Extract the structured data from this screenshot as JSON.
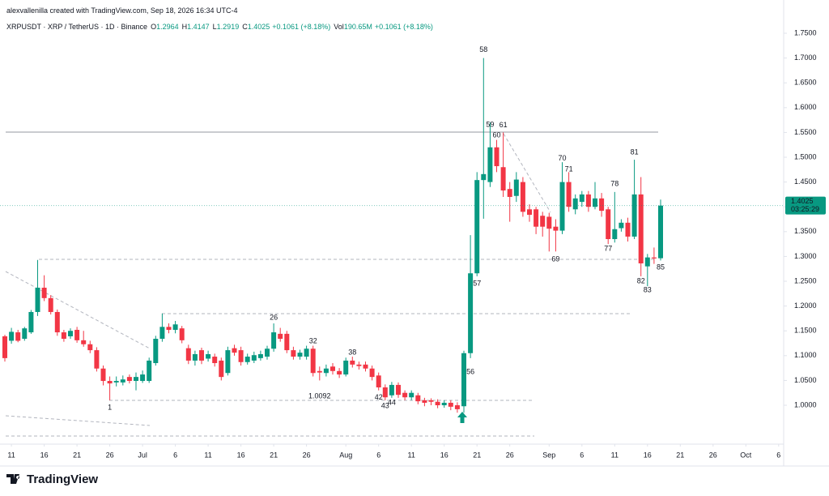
{
  "header": {
    "credit": "alexvallenilla created with TradingView.com, Sep 18, 2026 16:34 UTC-4",
    "symbol": "XRPUSDT · XRP / TetherUS · 1D · Binance",
    "ohlc": [
      {
        "label": "O",
        "value": "1.2964"
      },
      {
        "label": "H",
        "value": "1.4147"
      },
      {
        "label": "L",
        "value": "1.2919"
      },
      {
        "label": "C",
        "value": "1.4025"
      }
    ],
    "change": "+0.1061 (+8.18%)",
    "volume_label": "Vol",
    "volume": "190.65M",
    "volume_change": "+0.1061 (+8.18%)"
  },
  "chart_data": {
    "type": "candlestick",
    "x": [
      "2026-06-10",
      "2026-06-11",
      "2026-06-12",
      "2026-06-13",
      "2026-06-14",
      "2026-06-15",
      "2026-06-16",
      "2026-06-17",
      "2026-06-18",
      "2026-06-19",
      "2026-06-20",
      "2026-06-21",
      "2026-06-22",
      "2026-06-23",
      "2026-06-24",
      "2026-06-25",
      "2026-06-26",
      "2026-06-27",
      "2026-06-28",
      "2026-06-29",
      "2026-06-30",
      "2026-07-01",
      "2026-07-02",
      "2026-07-03",
      "2026-07-04",
      "2026-07-05",
      "2026-07-06",
      "2026-07-07",
      "2026-07-08",
      "2026-07-09",
      "2026-07-10",
      "2026-07-11",
      "2026-07-12",
      "2026-07-13",
      "2026-07-14",
      "2026-07-15",
      "2026-07-16",
      "2026-07-17",
      "2026-07-18",
      "2026-07-19",
      "2026-07-20",
      "2026-07-21",
      "2026-07-22",
      "2026-07-23",
      "2026-07-24",
      "2026-07-25",
      "2026-07-26",
      "2026-07-27",
      "2026-07-28",
      "2026-07-29",
      "2026-07-30",
      "2026-07-31",
      "2026-08-01",
      "2026-08-02",
      "2026-08-03",
      "2026-08-04",
      "2026-08-05",
      "2026-08-06",
      "2026-08-07",
      "2026-08-08",
      "2026-08-09",
      "2026-08-10",
      "2026-08-11",
      "2026-08-12",
      "2026-08-13",
      "2026-08-14",
      "2026-08-15",
      "2026-08-16",
      "2026-08-17",
      "2026-08-18",
      "2026-08-19",
      "2026-08-20",
      "2026-08-21",
      "2026-08-22",
      "2026-08-23",
      "2026-08-24",
      "2026-08-25",
      "2026-08-26",
      "2026-08-27",
      "2026-08-28",
      "2026-08-29",
      "2026-08-30",
      "2026-08-31",
      "2026-09-01",
      "2026-09-02",
      "2026-09-03",
      "2026-09-04",
      "2026-09-05",
      "2026-09-06",
      "2026-09-07",
      "2026-09-08",
      "2026-09-09",
      "2026-09-10",
      "2026-09-11",
      "2026-09-12",
      "2026-09-13",
      "2026-09-14",
      "2026-09-15",
      "2026-09-16",
      "2026-09-17",
      "2026-09-18"
    ],
    "open": [
      1.139,
      1.13,
      1.147,
      1.134,
      1.147,
      1.188,
      1.237,
      1.216,
      1.188,
      1.147,
      1.139,
      1.152,
      1.131,
      1.123,
      1.111,
      1.074,
      1.049,
      1.046,
      1.046,
      1.057,
      1.049,
      1.049,
      1.049,
      1.085,
      1.134,
      1.158,
      1.152,
      1.155,
      1.115,
      1.09,
      1.111,
      1.094,
      1.098,
      1.09,
      1.065,
      1.115,
      1.111,
      1.087,
      1.09,
      1.095,
      1.098,
      1.114,
      1.144,
      1.144,
      1.111,
      1.098,
      1.098,
      1.114,
      1.069,
      1.065,
      1.078,
      1.069,
      1.062,
      1.09,
      1.082,
      1.082,
      1.074,
      1.06,
      1.036,
      1.02,
      1.041,
      1.025,
      1.016,
      1.02,
      1.01,
      1.01,
      1.007,
      1.0,
      1.005,
      1.0,
      0.998,
      1.105,
      1.266,
      1.454,
      1.45,
      1.52,
      1.48,
      1.436,
      1.422,
      1.45,
      1.395,
      1.395,
      1.382,
      1.38,
      1.36,
      1.352,
      1.45,
      1.395,
      1.41,
      1.425,
      1.4,
      1.417,
      1.395,
      1.335,
      1.357,
      1.368,
      1.34,
      1.425,
      1.28,
      1.298,
      1.2964
    ],
    "high": [
      1.142,
      1.156,
      1.152,
      1.158,
      1.192,
      1.293,
      1.262,
      1.222,
      1.193,
      1.152,
      1.155,
      1.158,
      1.15,
      1.13,
      1.117,
      1.08,
      1.058,
      1.058,
      1.06,
      1.062,
      1.066,
      1.07,
      1.096,
      1.14,
      1.185,
      1.165,
      1.17,
      1.16,
      1.122,
      1.11,
      1.116,
      1.11,
      1.104,
      1.096,
      1.118,
      1.122,
      1.118,
      1.104,
      1.108,
      1.11,
      1.12,
      1.165,
      1.156,
      1.15,
      1.118,
      1.112,
      1.12,
      1.12,
      1.078,
      1.082,
      1.085,
      1.075,
      1.096,
      1.098,
      1.088,
      1.088,
      1.08,
      1.066,
      1.042,
      1.047,
      1.046,
      1.03,
      1.03,
      1.025,
      1.015,
      1.014,
      1.012,
      1.01,
      1.01,
      1.006,
      1.11,
      1.343,
      1.47,
      1.7,
      1.57,
      1.535,
      1.55,
      1.45,
      1.47,
      1.46,
      1.405,
      1.4,
      1.39,
      1.388,
      1.375,
      1.49,
      1.47,
      1.425,
      1.432,
      1.432,
      1.45,
      1.428,
      1.4,
      1.43,
      1.375,
      1.378,
      1.495,
      1.46,
      1.305,
      1.318,
      1.4147
    ],
    "low": [
      1.088,
      1.124,
      1.127,
      1.13,
      1.144,
      1.18,
      1.21,
      1.183,
      1.14,
      1.128,
      1.134,
      1.126,
      1.118,
      1.105,
      1.068,
      1.04,
      1.01,
      1.038,
      1.04,
      1.044,
      1.03,
      1.045,
      1.045,
      1.08,
      1.128,
      1.145,
      1.145,
      1.125,
      1.083,
      1.08,
      1.083,
      1.088,
      1.078,
      1.05,
      1.06,
      1.1,
      1.08,
      1.082,
      1.085,
      1.09,
      1.092,
      1.108,
      1.128,
      1.105,
      1.092,
      1.092,
      1.092,
      1.058,
      1.05,
      1.058,
      1.062,
      1.055,
      1.058,
      1.076,
      1.072,
      1.068,
      1.05,
      1.03,
      1.01,
      1.015,
      1.015,
      1.01,
      1.01,
      1.002,
      0.998,
      1.0,
      0.994,
      0.995,
      0.99,
      0.985,
      0.985,
      1.095,
      1.26,
      1.376,
      1.44,
      1.47,
      1.42,
      1.37,
      1.41,
      1.38,
      1.37,
      1.345,
      1.34,
      1.31,
      1.31,
      1.345,
      1.39,
      1.385,
      1.4,
      1.39,
      1.395,
      1.38,
      1.325,
      1.328,
      1.35,
      1.33,
      1.335,
      1.26,
      1.24,
      1.285,
      1.2919
    ],
    "close": [
      1.095,
      1.148,
      1.13,
      1.155,
      1.188,
      1.237,
      1.216,
      1.188,
      1.147,
      1.134,
      1.15,
      1.131,
      1.123,
      1.111,
      1.074,
      1.049,
      1.044,
      1.049,
      1.052,
      1.049,
      1.057,
      1.062,
      1.09,
      1.134,
      1.158,
      1.152,
      1.163,
      1.131,
      1.09,
      1.103,
      1.09,
      1.103,
      1.085,
      1.057,
      1.111,
      1.106,
      1.087,
      1.098,
      1.101,
      1.103,
      1.114,
      1.147,
      1.134,
      1.111,
      1.098,
      1.106,
      1.114,
      1.065,
      1.066,
      1.074,
      1.069,
      1.062,
      1.09,
      1.082,
      1.079,
      1.074,
      1.057,
      1.036,
      1.016,
      1.041,
      1.021,
      1.016,
      1.025,
      1.008,
      1.005,
      1.007,
      1.0,
      1.005,
      0.997,
      0.992,
      1.105,
      1.266,
      1.454,
      1.466,
      1.52,
      1.482,
      1.433,
      1.42,
      1.455,
      1.39,
      1.384,
      1.36,
      1.36,
      1.356,
      1.352,
      1.45,
      1.4,
      1.417,
      1.425,
      1.4,
      1.417,
      1.392,
      1.335,
      1.355,
      1.368,
      1.34,
      1.425,
      1.286,
      1.298,
      1.296,
      1.4025
    ],
    "up_color": "#089981",
    "down_color": "#f23645",
    "xlim": [
      "2026-06-09",
      "2026-10-07"
    ],
    "xticks": [
      {
        "value": "2026-06-11",
        "label": "11"
      },
      {
        "value": "2026-06-16",
        "label": "16"
      },
      {
        "value": "2026-06-21",
        "label": "21"
      },
      {
        "value": "2026-06-26",
        "label": "26"
      },
      {
        "value": "2026-07-01",
        "label": "Jul"
      },
      {
        "value": "2026-07-06",
        "label": "6"
      },
      {
        "value": "2026-07-11",
        "label": "11"
      },
      {
        "value": "2026-07-16",
        "label": "16"
      },
      {
        "value": "2026-07-21",
        "label": "21"
      },
      {
        "value": "2026-07-26",
        "label": "26"
      },
      {
        "value": "2026-08-01",
        "label": "Aug"
      },
      {
        "value": "2026-08-06",
        "label": "6"
      },
      {
        "value": "2026-08-11",
        "label": "11"
      },
      {
        "value": "2026-08-16",
        "label": "16"
      },
      {
        "value": "2026-08-21",
        "label": "21"
      },
      {
        "value": "2026-08-26",
        "label": "26"
      },
      {
        "value": "2026-09-01",
        "label": "Sep"
      },
      {
        "value": "2026-09-06",
        "label": "6"
      },
      {
        "value": "2026-09-11",
        "label": "11"
      },
      {
        "value": "2026-09-16",
        "label": "16"
      },
      {
        "value": "2026-09-21",
        "label": "21"
      },
      {
        "value": "2026-09-26",
        "label": "26"
      },
      {
        "value": "2026-10-01",
        "label": "Oct"
      },
      {
        "value": "2026-10-06",
        "label": "6"
      }
    ],
    "ylim": [
      0.9265,
      1.768
    ],
    "yticks": [
      {
        "value": 1.0,
        "label": "1.0000"
      },
      {
        "value": 1.05,
        "label": "1.0500"
      },
      {
        "value": 1.1,
        "label": "1.1000"
      },
      {
        "value": 1.15,
        "label": "1.1500"
      },
      {
        "value": 1.2,
        "label": "1.2000"
      },
      {
        "value": 1.25,
        "label": "1.2500"
      },
      {
        "value": 1.3,
        "label": "1.3000"
      },
      {
        "value": 1.35,
        "label": "1.3500"
      },
      {
        "value": 1.4,
        "label": "1.4000"
      },
      {
        "value": 1.45,
        "label": "1.4500"
      },
      {
        "value": 1.5,
        "label": "1.5000"
      },
      {
        "value": 1.55,
        "label": "1.5500"
      },
      {
        "value": 1.6,
        "label": "1.6000"
      },
      {
        "value": 1.65,
        "label": "1.6500"
      },
      {
        "value": 1.7,
        "label": "1.7000"
      },
      {
        "value": 1.75,
        "label": "1.7500"
      }
    ],
    "grid": false,
    "annotations": [
      {
        "text": "1",
        "x": "2026-06-26",
        "y": 0.995
      },
      {
        "text": "26",
        "x": "2026-07-21",
        "y": 1.176
      },
      {
        "text": "32",
        "x": "2026-07-27",
        "y": 1.129
      },
      {
        "text": "38",
        "x": "2026-08-02",
        "y": 1.106
      },
      {
        "text": "42",
        "x": "2026-08-06",
        "y": 1.015
      },
      {
        "text": "43",
        "x": "2026-08-07",
        "y": 0.998
      },
      {
        "text": "44",
        "x": "2026-08-08",
        "y": 1.005
      },
      {
        "text": "56",
        "x": "2026-08-20",
        "y": 1.067
      },
      {
        "text": "57",
        "x": "2026-08-21",
        "y": 1.245
      },
      {
        "text": "58",
        "x": "2026-08-22",
        "y": 1.716
      },
      {
        "text": "59",
        "x": "2026-08-23",
        "y": 1.565
      },
      {
        "text": "60",
        "x": "2026-08-24",
        "y": 1.544
      },
      {
        "text": "61",
        "x": "2026-08-25",
        "y": 1.564
      },
      {
        "text": "69",
        "x": "2026-09-02",
        "y": 1.294
      },
      {
        "text": "70",
        "x": "2026-09-03",
        "y": 1.497
      },
      {
        "text": "71",
        "x": "2026-09-04",
        "y": 1.475
      },
      {
        "text": "77",
        "x": "2026-09-10",
        "y": 1.315
      },
      {
        "text": "78",
        "x": "2026-09-11",
        "y": 1.446
      },
      {
        "text": "81",
        "x": "2026-09-14",
        "y": 1.51
      },
      {
        "text": "82",
        "x": "2026-09-15",
        "y": 1.25
      },
      {
        "text": "83",
        "x": "2026-09-16",
        "y": 1.232
      },
      {
        "text": "85",
        "x": "2026-09-18",
        "y": 1.278
      },
      {
        "text": "1.0092",
        "x": "2026-07-28",
        "y": 1.018
      }
    ],
    "countdown": "03:25:29"
  },
  "footer": {
    "brand": "TradingView"
  }
}
